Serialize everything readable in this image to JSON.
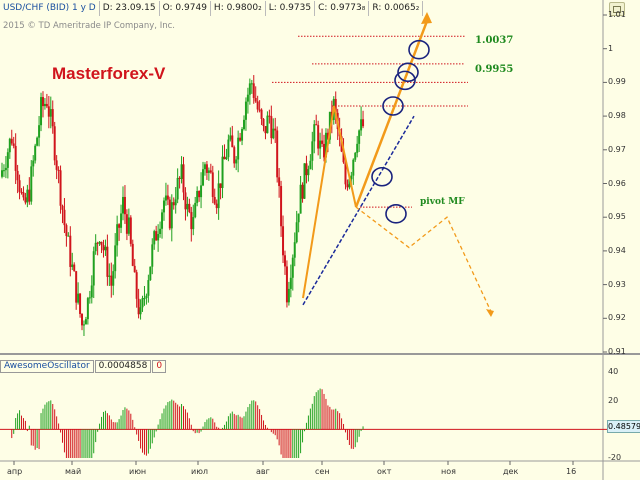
{
  "header": {
    "symbol": "USD/CHF (BID) 1 у D",
    "date": "D: 23.09.15",
    "open": "O: 0.9749",
    "high": "H: 0.9800₂",
    "low": "L: 0.9735",
    "close": "C: 0.9773₈",
    "range": "R: 0.0065₂"
  },
  "copyright": "2015 © TD Ameritrade IP Company, Inc.",
  "title": "Masterforex-V",
  "levels": {
    "upper": "1.0037",
    "lower": "0.9955"
  },
  "pivot_label": "pivot MF",
  "oscillator": {
    "name": "AwesomeOscillator",
    "value": "0.0004858",
    "zero": "0",
    "badge": "0.48579"
  },
  "colors": {
    "bull": "#1fa01f",
    "bear": "#d0141c",
    "projection": "#f29a1a",
    "trendline": "#1a2a9a",
    "marker": "#1a237e",
    "level": "#d0141c"
  },
  "chart_data": [
    {
      "type": "candlestick",
      "title": "USD/CHF (BID) 1 у D",
      "xlabel": "",
      "ylabel": "",
      "ylim": [
        0.91,
        1.01
      ],
      "y_ticks": [
        "1.01",
        "1",
        "0.99",
        "0.98",
        "0.97",
        "0.96",
        "0.95",
        "0.94",
        "0.93",
        "0.92",
        "0.91"
      ],
      "x_ticks": [
        "апр",
        "май",
        "июн",
        "июл",
        "авг",
        "сен",
        "окт",
        "ноя",
        "дек",
        "16"
      ],
      "levels": [
        1.0037,
        0.9955
      ],
      "grid": false,
      "price_path": [
        0.962,
        0.968,
        0.974,
        0.964,
        0.952,
        0.958,
        0.97,
        0.982,
        0.985,
        0.975,
        0.962,
        0.948,
        0.938,
        0.928,
        0.918,
        0.925,
        0.938,
        0.946,
        0.938,
        0.93,
        0.944,
        0.954,
        0.946,
        0.93,
        0.92,
        0.93,
        0.94,
        0.948,
        0.955,
        0.95,
        0.958,
        0.962,
        0.952,
        0.948,
        0.958,
        0.966,
        0.962,
        0.956,
        0.964,
        0.972,
        0.968,
        0.976,
        0.985,
        0.99,
        0.982,
        0.975,
        0.98,
        0.972,
        0.948,
        0.928,
        0.94,
        0.954,
        0.962,
        0.97,
        0.976,
        0.968,
        0.975,
        0.983,
        0.972,
        0.96,
        0.965,
        0.975,
        0.977
      ],
      "projection": [
        [
          0.926,
          0.983
        ],
        [
          0.983,
          0.953
        ],
        [
          0.953,
          1.01
        ]
      ],
      "bear_projection": [
        0.953,
        0.941,
        0.95,
        0.923
      ]
    },
    {
      "type": "bar",
      "title": "AwesomeOscillator",
      "ylim": [
        -20,
        40
      ],
      "y_ticks": [
        "40",
        "20",
        "-20"
      ],
      "values_source": "awesome_oscillator",
      "last_value": 0.48579
    }
  ]
}
